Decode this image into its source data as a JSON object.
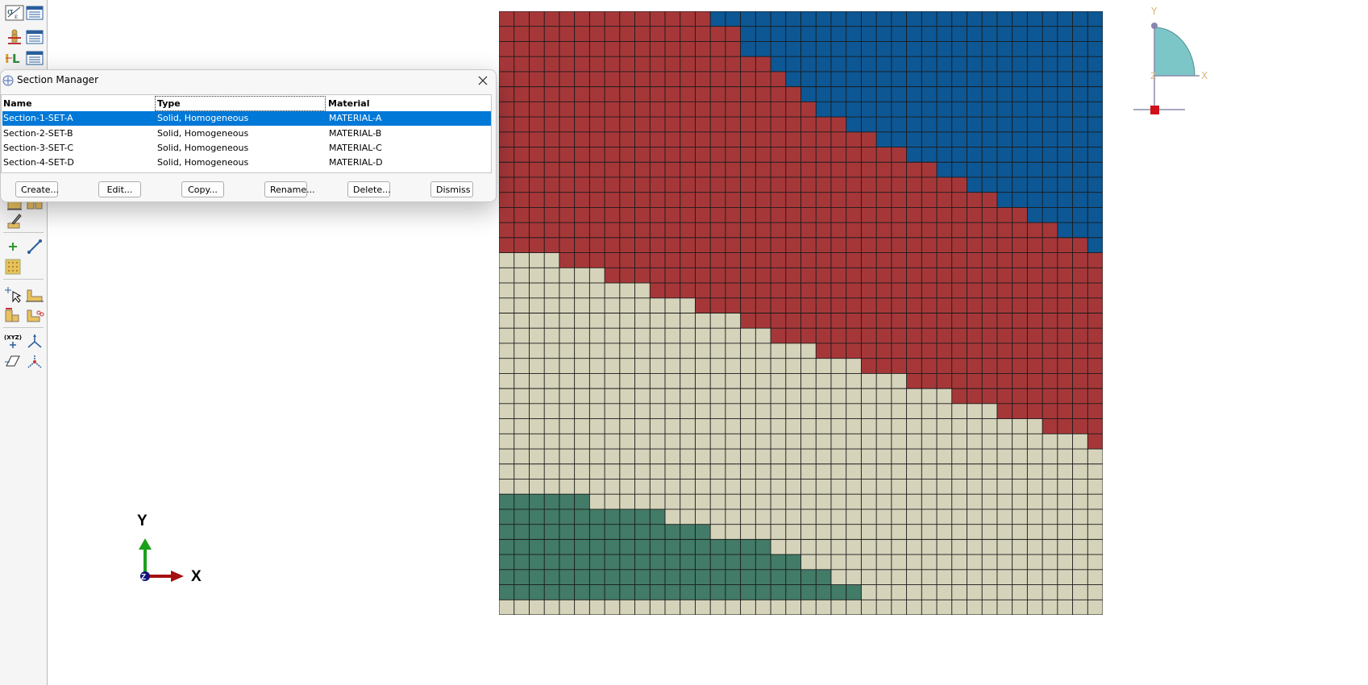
{
  "dialog": {
    "title": "Section Manager",
    "columns": [
      "Name",
      "Type",
      "Material"
    ],
    "rows": [
      {
        "name": "Section-1-SET-A",
        "type": "Solid, Homogeneous",
        "material": "MATERIAL-A"
      },
      {
        "name": "Section-2-SET-B",
        "type": "Solid, Homogeneous",
        "material": "MATERIAL-B"
      },
      {
        "name": "Section-3-SET-C",
        "type": "Solid, Homogeneous",
        "material": "MATERIAL-C"
      },
      {
        "name": "Section-4-SET-D",
        "type": "Solid, Homogeneous",
        "material": "MATERIAL-D"
      }
    ],
    "selected_row": 0,
    "buttons": {
      "create": "Create...",
      "edit": "Edit...",
      "copy": "Copy...",
      "rename": "Rename...",
      "delete": "Delete...",
      "dismiss": "Dismiss"
    }
  },
  "toolbox": {
    "icons": [
      "material-icon",
      "material-manager-icon",
      "section-icon",
      "section-manager-icon",
      "profile-icon",
      "profile-manager-icon",
      "assign-section-icon",
      "assign-section-manager-icon",
      "special-icon",
      "datum-point-icon",
      "datum-axis-icon",
      "partition-icon",
      "query-icon",
      "set-icon",
      "surface-icon",
      "skin-icon",
      "csys-icon",
      "datum-csys-icon",
      "datum-plane-icon",
      "orientation-icon"
    ],
    "csys_label": "(XYZ)"
  },
  "viewport": {
    "axis_labels": {
      "x": "X",
      "y": "Y",
      "z": "Z"
    },
    "mesh": {
      "rows": 40,
      "cols": 40,
      "colors": {
        "A": "#0d5794",
        "B": "#a63739",
        "C": "#d5d3ba",
        "D": "#427b67",
        "grid": "#1a1a1a"
      },
      "region_boundaries": {
        "A_start_col": [
          14,
          16,
          16,
          18,
          19,
          20,
          21,
          23,
          25,
          27,
          29,
          31,
          33,
          35,
          37,
          39,
          40,
          40,
          40,
          40,
          40,
          40,
          40,
          40,
          40,
          40,
          40,
          40,
          40,
          40,
          40,
          40,
          40,
          40,
          40,
          40,
          40,
          40,
          40,
          40
        ],
        "C_end_col": [
          0,
          0,
          0,
          0,
          0,
          0,
          0,
          0,
          0,
          0,
          0,
          0,
          0,
          0,
          0,
          0,
          4,
          7,
          10,
          13,
          16,
          18,
          21,
          24,
          27,
          30,
          33,
          36,
          39,
          40,
          40,
          40,
          40,
          40,
          40,
          40,
          40,
          40,
          40,
          40
        ],
        "D_end_col": [
          0,
          0,
          0,
          0,
          0,
          0,
          0,
          0,
          0,
          0,
          0,
          0,
          0,
          0,
          0,
          0,
          0,
          0,
          0,
          0,
          0,
          0,
          0,
          0,
          0,
          0,
          0,
          0,
          0,
          0,
          0,
          0,
          6,
          11,
          14,
          18,
          20,
          22,
          24,
          0
        ]
      }
    }
  }
}
